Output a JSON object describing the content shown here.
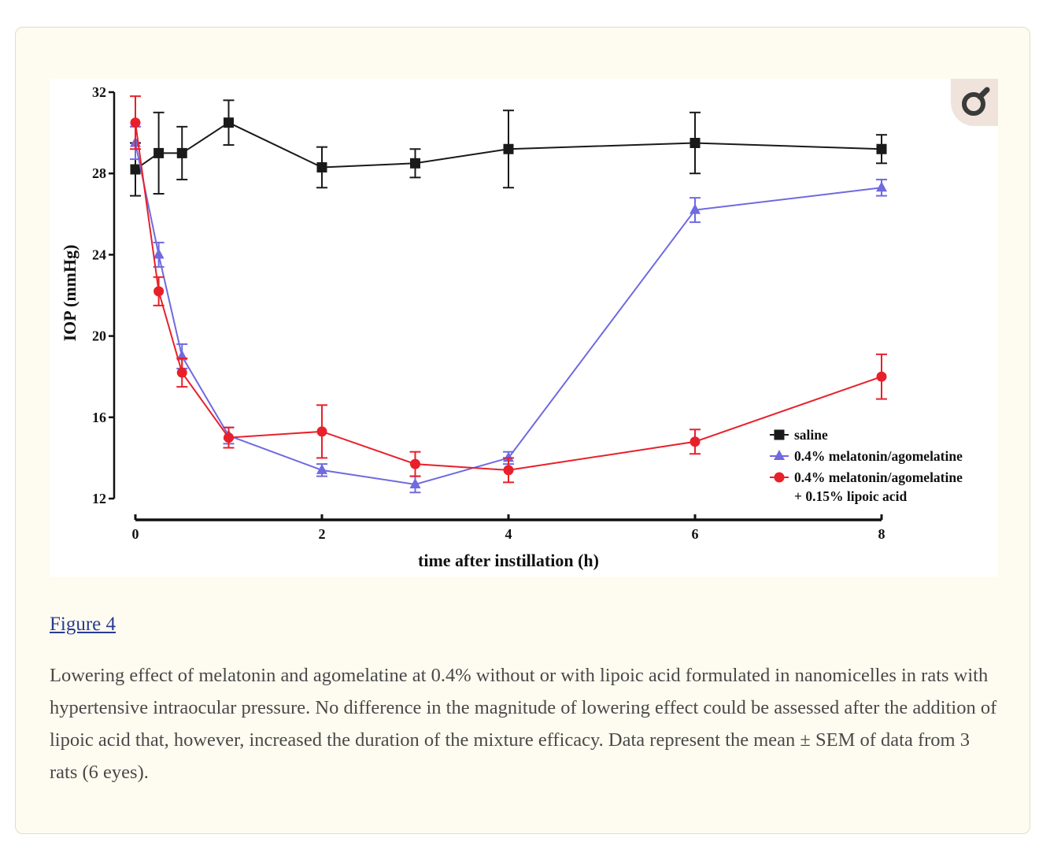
{
  "figure": {
    "link_label": "Figure 4",
    "caption": "Lowering effect of melatonin and agomelatine at 0.4% without or with lipoic acid formulated in nanomicelles in rats with hypertensive intraocular pressure. No difference in the magnitude of lowering effect could be assessed after the addition of lipoic acid that, however, increased the duration of the mixture efficacy. Data represent the mean ± SEM of data from 3 rats (6 eyes).",
    "zoom_icon": "magnify-icon"
  },
  "chart_data": {
    "type": "line",
    "title": "",
    "xlabel": "time after instillation (h)",
    "ylabel": "IOP (mmHg)",
    "xlim": [
      0,
      8
    ],
    "ylim": [
      12,
      32
    ],
    "xticks": [
      0,
      2,
      4,
      6,
      8
    ],
    "yticks": [
      12,
      16,
      20,
      24,
      28,
      32
    ],
    "grid": false,
    "legend_position": "bottom-right",
    "error_bars": "mean ± SEM",
    "series": [
      {
        "name": "saline",
        "color": "#1a1a1a",
        "marker": "square",
        "x": [
          0,
          0.25,
          0.5,
          1,
          2,
          3,
          4,
          6,
          8
        ],
        "y": [
          28.2,
          29.0,
          29.0,
          30.5,
          28.3,
          28.5,
          29.2,
          29.5,
          29.2
        ],
        "err": [
          1.3,
          2.0,
          1.3,
          1.1,
          1.0,
          0.7,
          1.9,
          1.5,
          0.7
        ]
      },
      {
        "name": "0.4% melatonin/agomelatine",
        "color": "#6f6ae0",
        "marker": "triangle",
        "x": [
          0,
          0.25,
          0.5,
          1,
          2,
          3,
          4,
          6,
          8
        ],
        "y": [
          29.5,
          24.0,
          19.0,
          15.1,
          13.4,
          12.7,
          14.0,
          26.2,
          27.3
        ],
        "err": [
          0.8,
          0.6,
          0.6,
          0.4,
          0.3,
          0.4,
          0.3,
          0.6,
          0.4
        ]
      },
      {
        "name": "0.4% melatonin/agomelatine",
        "name_line2": "+ 0.15% lipoic acid",
        "color": "#e8202a",
        "marker": "circle",
        "x": [
          0,
          0.25,
          0.5,
          1,
          2,
          3,
          4,
          6,
          8
        ],
        "y": [
          30.5,
          22.2,
          18.2,
          15.0,
          15.3,
          13.7,
          13.4,
          14.8,
          18.0
        ],
        "err": [
          1.3,
          0.7,
          0.7,
          0.5,
          1.3,
          0.6,
          0.6,
          0.6,
          1.1
        ]
      }
    ]
  }
}
